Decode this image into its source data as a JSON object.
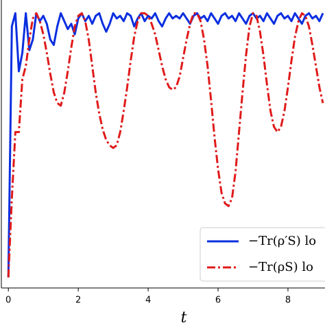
{
  "chart_data": {
    "type": "line",
    "x_label": "t",
    "x": [
      0,
      0.1,
      0.2,
      0.3,
      0.4,
      0.5,
      0.6,
      0.7,
      0.8,
      0.9,
      1.0,
      1.1,
      1.2,
      1.3,
      1.4,
      1.5,
      1.6,
      1.7,
      1.8,
      1.9,
      2.0,
      2.1,
      2.2,
      2.3,
      2.4,
      2.5,
      2.6,
      2.7,
      2.8,
      2.9,
      3.0,
      3.1,
      3.2,
      3.3,
      3.4,
      3.5,
      3.6,
      3.7,
      3.8,
      3.9,
      4.0,
      4.1,
      4.2,
      4.3,
      4.4,
      4.5,
      4.6,
      4.7,
      4.8,
      4.9,
      5.0,
      5.1,
      5.2,
      5.3,
      5.4,
      5.5,
      5.6,
      5.7,
      5.8,
      5.9,
      6.0,
      6.1,
      6.2,
      6.3,
      6.4,
      6.5,
      6.6,
      6.7,
      6.8,
      6.9,
      7.0,
      7.1,
      7.2,
      7.3,
      7.4,
      7.5,
      7.6,
      7.7,
      7.8,
      7.9,
      8.0,
      8.1,
      8.2,
      8.3,
      8.4,
      8.5,
      8.6,
      8.7,
      8.8,
      8.9,
      9.0
    ],
    "series": [
      {
        "name": "−Tr(ρ′S) lo",
        "color": "#0a2ee0",
        "style": "solid",
        "values": [
          0,
          0.95,
          1.0,
          0.78,
          0.85,
          1.0,
          0.86,
          0.9,
          1.0,
          0.97,
          0.99,
          0.96,
          0.9,
          0.88,
          0.95,
          1.0,
          0.97,
          0.94,
          0.96,
          0.92,
          0.98,
          1.0,
          0.97,
          0.99,
          0.96,
          0.99,
          1.0,
          0.96,
          0.93,
          0.96,
          1.0,
          0.98,
          0.99,
          0.97,
          1.0,
          0.99,
          0.95,
          0.98,
          1.0,
          0.97,
          0.99,
          0.98,
          1.0,
          0.97,
          0.95,
          0.98,
          1.0,
          0.98,
          0.99,
          0.98,
          1.0,
          0.98,
          0.96,
          0.99,
          1.0,
          0.98,
          0.99,
          0.97,
          1.0,
          0.98,
          0.96,
          0.99,
          1.0,
          0.98,
          0.99,
          0.97,
          1.0,
          0.98,
          0.96,
          0.99,
          1.0,
          0.98,
          0.99,
          0.97,
          1.0,
          0.98,
          0.96,
          0.99,
          1.0,
          0.98,
          0.99,
          0.97,
          1.0,
          0.98,
          0.96,
          0.99,
          1.0,
          0.98,
          0.99,
          0.97,
          1.0
        ]
      },
      {
        "name": "−Tr(ρS) lo",
        "color": "#e01a1a",
        "style": "dashdot",
        "values": [
          0,
          0.3,
          0.55,
          0.55,
          0.75,
          0.8,
          0.9,
          0.98,
          1.0,
          0.97,
          0.92,
          0.85,
          0.77,
          0.7,
          0.66,
          0.65,
          0.7,
          0.78,
          0.87,
          0.95,
          0.99,
          1.0,
          0.97,
          0.9,
          0.8,
          0.7,
          0.62,
          0.56,
          0.52,
          0.5,
          0.49,
          0.5,
          0.55,
          0.63,
          0.72,
          0.82,
          0.91,
          0.97,
          1.0,
          1.0,
          0.99,
          0.96,
          0.92,
          0.86,
          0.8,
          0.75,
          0.72,
          0.71,
          0.72,
          0.76,
          0.83,
          0.9,
          0.96,
          1.0,
          1.0,
          0.97,
          0.9,
          0.8,
          0.67,
          0.53,
          0.41,
          0.32,
          0.28,
          0.27,
          0.3,
          0.4,
          0.55,
          0.7,
          0.84,
          0.95,
          1.0,
          0.99,
          0.93,
          0.84,
          0.73,
          0.63,
          0.57,
          0.55,
          0.57,
          0.63,
          0.72,
          0.82,
          0.91,
          0.97,
          1.0,
          0.99,
          0.95,
          0.88,
          0.8,
          0.72,
          0.66
        ]
      }
    ],
    "xlim": [
      -0.2,
      9.06
    ],
    "ylim": [
      -0.04,
      1.05
    ],
    "xticks": [
      0,
      2,
      4,
      6,
      8
    ],
    "legend": "lower right"
  }
}
